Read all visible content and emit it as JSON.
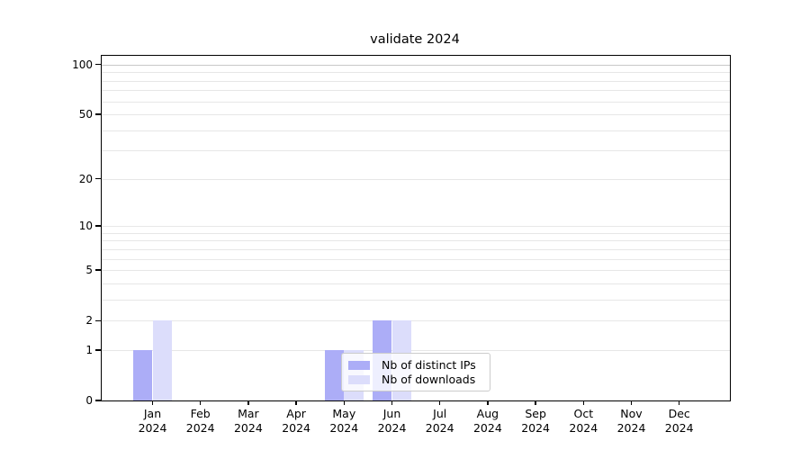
{
  "chart_data": {
    "type": "bar",
    "title": "validate 2024",
    "categories": [
      {
        "month": "Jan",
        "year": "2024"
      },
      {
        "month": "Feb",
        "year": "2024"
      },
      {
        "month": "Mar",
        "year": "2024"
      },
      {
        "month": "Apr",
        "year": "2024"
      },
      {
        "month": "May",
        "year": "2024"
      },
      {
        "month": "Jun",
        "year": "2024"
      },
      {
        "month": "Jul",
        "year": "2024"
      },
      {
        "month": "Aug",
        "year": "2024"
      },
      {
        "month": "Sep",
        "year": "2024"
      },
      {
        "month": "Oct",
        "year": "2024"
      },
      {
        "month": "Nov",
        "year": "2024"
      },
      {
        "month": "Dec",
        "year": "2024"
      }
    ],
    "series": [
      {
        "name": "Nb of distinct IPs",
        "color": "#acadf7",
        "values": [
          1,
          0,
          0,
          0,
          1,
          2,
          0,
          0,
          0,
          0,
          0,
          0
        ]
      },
      {
        "name": "Nb of downloads",
        "color": "#dcddfb",
        "values": [
          2,
          0,
          0,
          0,
          1,
          2,
          0,
          0,
          0,
          0,
          0,
          0
        ]
      }
    ],
    "xlabel": "",
    "ylabel": "",
    "yscale": "log1p",
    "ylim": [
      0,
      113
    ],
    "yticks": [
      0,
      1,
      2,
      5,
      10,
      20,
      50,
      100
    ],
    "gridlines": [
      {
        "v": 1,
        "major": false
      },
      {
        "v": 2,
        "major": false
      },
      {
        "v": 3,
        "major": false
      },
      {
        "v": 4,
        "major": false
      },
      {
        "v": 5,
        "major": false
      },
      {
        "v": 6,
        "major": false
      },
      {
        "v": 7,
        "major": false
      },
      {
        "v": 8,
        "major": false
      },
      {
        "v": 9,
        "major": false
      },
      {
        "v": 10,
        "major": false
      },
      {
        "v": 20,
        "major": false
      },
      {
        "v": 30,
        "major": false
      },
      {
        "v": 40,
        "major": false
      },
      {
        "v": 50,
        "major": false
      },
      {
        "v": 60,
        "major": false
      },
      {
        "v": 70,
        "major": false
      },
      {
        "v": 80,
        "major": false
      },
      {
        "v": 90,
        "major": false
      },
      {
        "v": 100,
        "major": true
      }
    ],
    "grid": true,
    "legend_position": "lower-center"
  }
}
